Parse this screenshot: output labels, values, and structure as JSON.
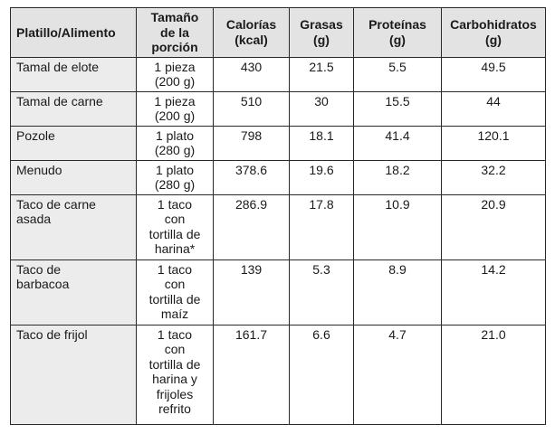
{
  "headers": {
    "food": "Platillo/Alimento",
    "portion": [
      "Tamaño",
      "de la",
      "porción"
    ],
    "calories": [
      "Calorías",
      "(kcal)"
    ],
    "fat": [
      "Grasas",
      "(g)"
    ],
    "protein": [
      "Proteínas",
      "(g)"
    ],
    "carbs": [
      "Carbohidratos",
      "(g)"
    ]
  },
  "rows": [
    {
      "food": [
        "Tamal de elote"
      ],
      "portion": [
        "1 pieza",
        "(200 g)"
      ],
      "calories": "430",
      "fat": "21.5",
      "protein": "5.5",
      "carbs": "49.5"
    },
    {
      "food": [
        "Tamal de carne"
      ],
      "portion": [
        "1 pieza",
        "(200 g)"
      ],
      "calories": "510",
      "fat": "30",
      "protein": "15.5",
      "carbs": "44"
    },
    {
      "food": [
        "Pozole"
      ],
      "portion": [
        "1 plato",
        "(280 g)"
      ],
      "calories": "798",
      "fat": "18.1",
      "protein": "41.4",
      "carbs": "120.1"
    },
    {
      "food": [
        "Menudo"
      ],
      "portion": [
        "1 plato",
        "(280 g)"
      ],
      "calories": "378.6",
      "fat": "19.6",
      "protein": "18.2",
      "carbs": "32.2"
    },
    {
      "food": [
        "Taco de carne",
        "asada"
      ],
      "portion": [
        "1 taco",
        "con",
        "tortilla de",
        "harina*"
      ],
      "calories": "286.9",
      "fat": "17.8",
      "protein": "10.9",
      "carbs": "20.9"
    },
    {
      "food": [
        "Taco de",
        "barbacoa"
      ],
      "portion": [
        "1 taco",
        "con",
        "tortilla de",
        "maíz"
      ],
      "calories": "139",
      "fat": "5.3",
      "protein": "8.9",
      "carbs": "14.2"
    },
    {
      "food": [
        "Taco de frijol"
      ],
      "portion": [
        "1 taco",
        "con",
        "tortilla de",
        "harina y",
        "frijoles",
        "refrito"
      ],
      "calories": "161.7",
      "fat": "6.6",
      "protein": "4.7",
      "carbs": "21.0"
    }
  ]
}
